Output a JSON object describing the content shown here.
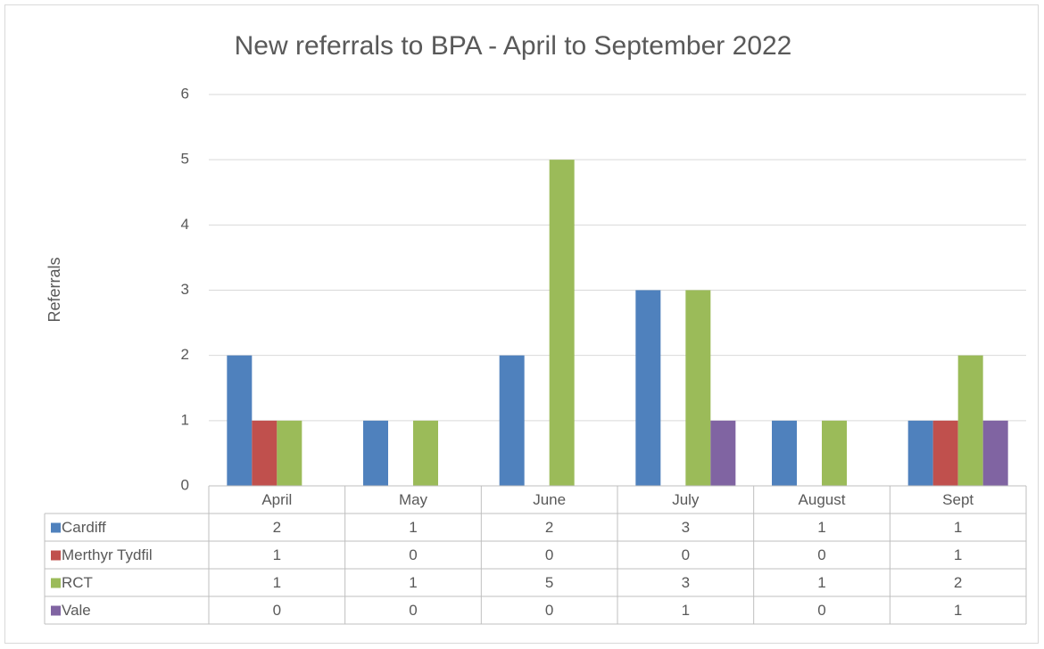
{
  "chart_data": {
    "type": "bar",
    "title": "New referrals to BPA - April to September 2022",
    "y_label": "Referrals",
    "categories": [
      "April",
      "May",
      "June",
      "July",
      "August",
      "Sept"
    ],
    "series": [
      {
        "name": "Cardiff",
        "color": "#4f81bd",
        "values": [
          2,
          1,
          2,
          3,
          1,
          1
        ]
      },
      {
        "name": "Merthyr Tydfil",
        "color": "#c0504d",
        "values": [
          1,
          0,
          0,
          0,
          0,
          1
        ]
      },
      {
        "name": "RCT",
        "color": "#9bbb59",
        "values": [
          1,
          1,
          5,
          3,
          1,
          2
        ]
      },
      {
        "name": "Vale",
        "color": "#8064a2",
        "values": [
          0,
          0,
          0,
          1,
          0,
          1
        ]
      }
    ],
    "ylim": [
      0,
      6
    ],
    "yticks": [
      0,
      1,
      2,
      3,
      4,
      5,
      6
    ],
    "grid": true,
    "data_table": true
  }
}
